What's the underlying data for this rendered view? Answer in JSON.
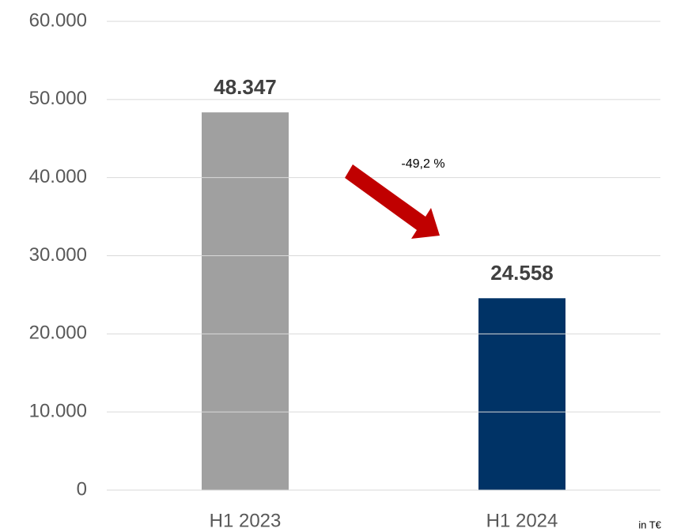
{
  "chart_data": {
    "type": "bar",
    "categories": [
      "H1 2023",
      "H1 2024"
    ],
    "values": [
      48347,
      24558
    ],
    "value_labels": [
      "48.347",
      "24.558"
    ],
    "colors": [
      "#a0a0a0",
      "#003366"
    ],
    "ylim": [
      0,
      60000
    ],
    "yticks": [
      0,
      {
        "value": 10000,
        "label": "10.000"
      },
      {
        "value": 20000,
        "label": "20.000"
      },
      {
        "value": 30000,
        "label": "30.000"
      },
      {
        "value": 40000,
        "label": "40.000"
      },
      {
        "value": 50000,
        "label": "50.000"
      },
      {
        "value": 60000,
        "label": "60.000"
      }
    ],
    "grid": true,
    "annotations": [
      "-49,2 %",
      "in T€"
    ]
  }
}
